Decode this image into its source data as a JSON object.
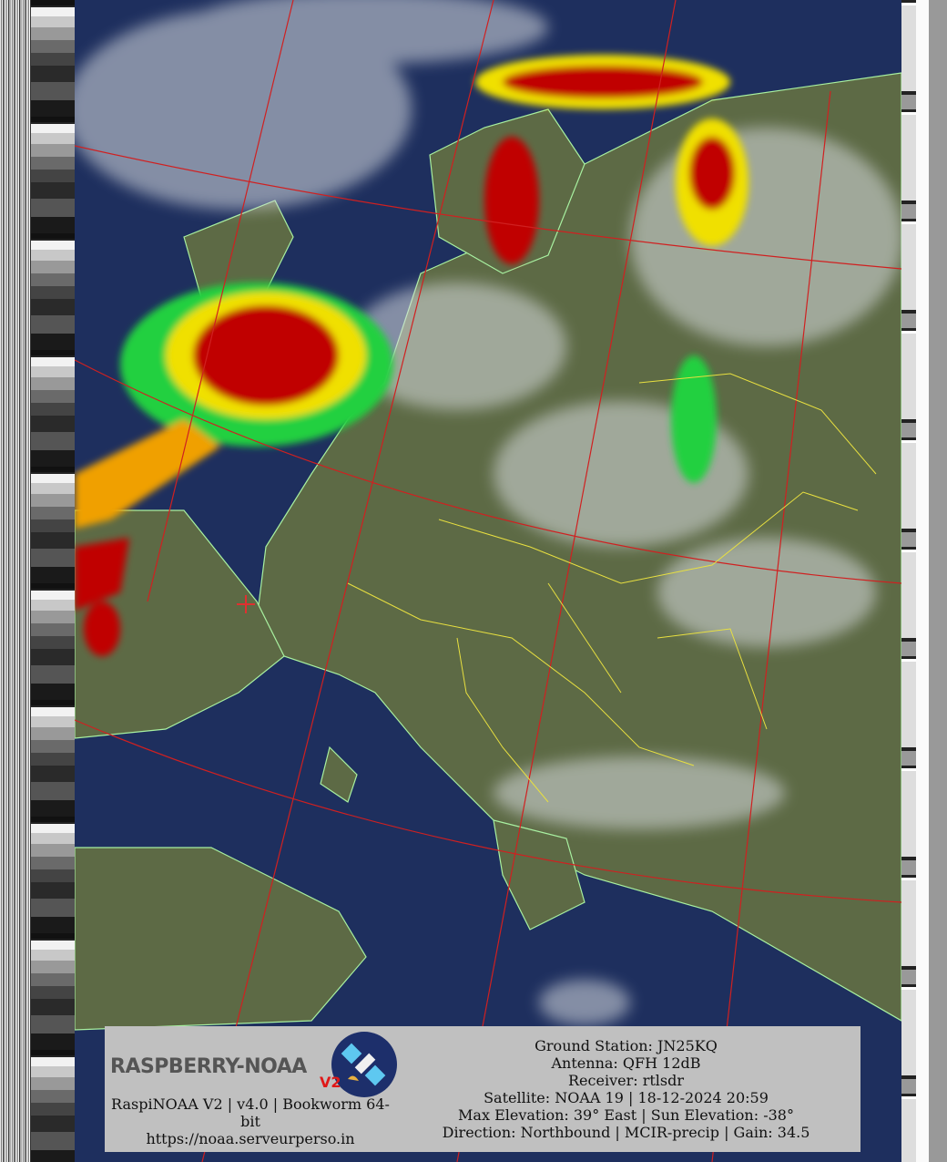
{
  "caption": {
    "logo_text": "RASPBERRY-NOAA",
    "logo_badge": "V2",
    "software": "RaspiNOAA V2 | v4.0 | Bookworm 64-bit",
    "url": "https://noaa.serveurperso.in",
    "ground_station": "Ground Station: JN25KQ",
    "antenna": "Antenna: QFH 12dB",
    "receiver": "Receiver: rtlsdr",
    "satellite": "Satellite: NOAA 19 | 18-12-2024 20:59",
    "elevation": "Max Elevation: 39° East | Sun Elevation: -38°",
    "direction": "Direction: Northbound | MCIR-precip | Gain: 34.5"
  },
  "colors": {
    "sea": "#1e2f5e",
    "land": "#5d6a45",
    "graticule": "#d02020",
    "borders": "#e8e040",
    "coastline": "#a8f0a0",
    "precip_heavy": "#c00000",
    "precip_medium": "#f0e000",
    "precip_light": "#20d040"
  },
  "overlay_icons": [
    "satellite-logo-icon",
    "station-marker-cross-icon"
  ]
}
